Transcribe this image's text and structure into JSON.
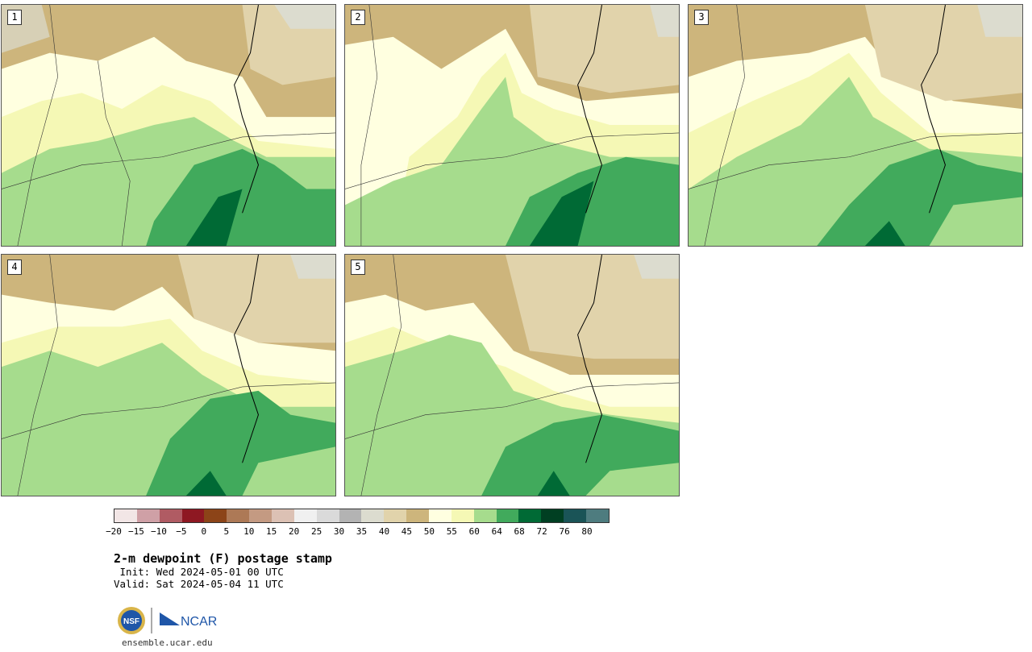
{
  "panels": [
    {
      "label": "1"
    },
    {
      "label": "2"
    },
    {
      "label": "3"
    },
    {
      "label": "4"
    },
    {
      "label": "5"
    }
  ],
  "colorbar": {
    "colors": [
      "#f2e6e6",
      "#cfa0a6",
      "#b05b63",
      "#8e1822",
      "#8c4418",
      "#ad7956",
      "#c49a82",
      "#dcc1b4",
      "#f0f0f0",
      "#dadada",
      "#b3b3b3",
      "#dcdccf",
      "#e1d3ab",
      "#cdb57c",
      "#ffffe0",
      "#f5f8b5",
      "#a6dc8d",
      "#41aa5c",
      "#006a35",
      "#003f22",
      "#1a5457",
      "#4e7c7f"
    ],
    "ticks": [
      "−20",
      "−15",
      "−10",
      "−5",
      "0",
      "5",
      "10",
      "15",
      "20",
      "25",
      "30",
      "35",
      "40",
      "45",
      "50",
      "55",
      "60",
      "64",
      "68",
      "72",
      "76",
      "80"
    ]
  },
  "title": "2-m dewpoint (F) postage stamp",
  "init": " Init: Wed 2024-05-01 00 UTC",
  "valid": "Valid: Sat 2024-05-04 11 UTC",
  "logos": {
    "nsf": "NSF",
    "ncar": "NCAR"
  },
  "footer": "ensemble.ucar.edu"
}
